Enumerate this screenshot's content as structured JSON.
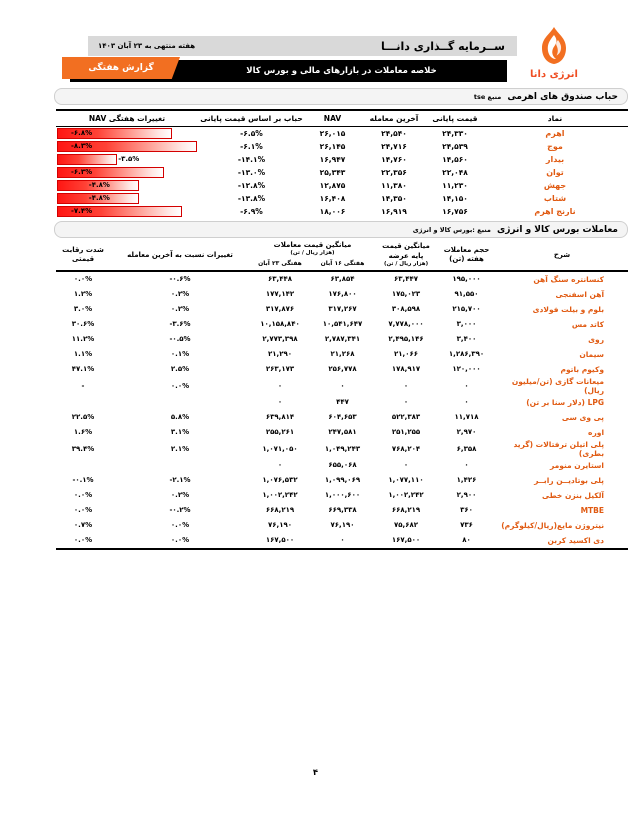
{
  "header": {
    "brand": "ســرمایه گــذاری دانـــا",
    "logo_text": "انرژی دانا",
    "date_label": "هفته منتهی به ۲۳ آبان ۱۴۰۳",
    "banner_title": "خلاصه معاملات در بازارهای مالی و بورس کالا",
    "badge": "گزارش هفتگی"
  },
  "colors": {
    "accent_orange": "#f26f21",
    "item_name_orange": "#e05a12",
    "data_bar_red": "#ff1613",
    "header_gray": "#d9d9d9",
    "banner_black": "#000000"
  },
  "funds_section": {
    "title": "حباب صندوق های اهرمی",
    "source": "منبع tse",
    "columns": [
      "نماد",
      "قیمت پایانی",
      "آخرین معامله",
      "NAV",
      "حباب بر اساس قیمت پایانی",
      "تغییرات هفتگی NAV"
    ],
    "rows": [
      {
        "symbol": "اهرم",
        "close": "۲۴,۳۳۰",
        "last": "۲۴,۵۴۰",
        "nav": "۲۶,۰۱۵",
        "bubble": "-۶.۵%",
        "nav_change": "-۶.۸%",
        "nav_change_value": -6.8
      },
      {
        "symbol": "موج",
        "close": "۲۴,۵۳۹",
        "last": "۲۴,۷۱۶",
        "nav": "۲۶,۱۴۵",
        "bubble": "-۶.۱%",
        "nav_change": "-۸.۳%",
        "nav_change_value": -8.3
      },
      {
        "symbol": "بیدار",
        "close": "۱۴,۵۶۰",
        "last": "۱۴,۷۶۰",
        "nav": "۱۶,۹۴۷",
        "bubble": "-۱۴.۱%",
        "nav_change": "-۳.۵%",
        "nav_change_value": -3.5
      },
      {
        "symbol": "توان",
        "close": "۲۲,۰۴۸",
        "last": "۲۲,۳۵۶",
        "nav": "۲۵,۳۴۳",
        "bubble": "-۱۳.۰%",
        "nav_change": "-۶.۳%",
        "nav_change_value": -6.3
      },
      {
        "symbol": "جهش",
        "close": "۱۱,۲۳۰",
        "last": "۱۱,۳۸۰",
        "nav": "۱۲,۸۷۵",
        "bubble": "-۱۲.۸%",
        "nav_change": "-۴.۸%",
        "nav_change_value": -4.8
      },
      {
        "symbol": "شتاب",
        "close": "۱۴,۱۵۰",
        "last": "۱۴,۳۵۰",
        "nav": "۱۶,۴۰۸",
        "bubble": "-۱۳.۸%",
        "nav_change": "-۴.۸%",
        "nav_change_value": -4.8
      },
      {
        "symbol": "نارنج اهرم",
        "close": "۱۶,۷۵۶",
        "last": "۱۶,۹۱۹",
        "nav": "۱۸,۰۰۶",
        "bubble": "-۶.۹%",
        "nav_change": "-۷.۴%",
        "nav_change_value": -7.4
      }
    ]
  },
  "commodity_section": {
    "title": "معاملات بورس کالا و انرژی",
    "source": "منبع :بورس کالا و انرژی",
    "columns": {
      "item": "شرح",
      "volume_l1": "حجم معاملات",
      "volume_l2": "هفته (تن)",
      "base": "میانگین قیمت پایه عرضه",
      "base_unit": "(هزار ریال / تن)",
      "avg": "میانگین قیمت معاملات",
      "avg_unit": "(هزار ریال / تن)",
      "week16": "هفتگی ۱۶ آبان",
      "week23": "هفتگی ۲۳ آبان",
      "change": "تغییرات نسبت به آخرین معامله",
      "competition": "شدت رقابت قیمتی"
    },
    "rows": [
      {
        "name": "کنسانتره سنگ آهن",
        "volume": "۱۹۵,۰۰۰",
        "base_price": "۶۳,۴۴۷",
        "week16": "۶۳,۸۵۴",
        "week23": "۶۳,۴۴۸",
        "change": "-۰.۶%",
        "competition": "۰.۰%"
      },
      {
        "name": "آهن اسفنجی",
        "volume": "۹۱,۵۵۰",
        "base_price": "۱۷۵,۰۲۳",
        "week16": "۱۷۶,۸۰۰",
        "week23": "۱۷۷,۱۴۲",
        "change": "۰.۲%",
        "competition": "۱.۲%"
      },
      {
        "name": "بلوم و بیلت فولادی",
        "volume": "۲۱۵,۷۰۰",
        "base_price": "۳۰۸,۵۹۸",
        "week16": "۳۱۷,۲۶۷",
        "week23": "۳۱۷,۸۷۶",
        "change": "۰.۲%",
        "competition": "۳.۰%"
      },
      {
        "name": "کاتد مس",
        "volume": "۳,۰۰۰",
        "base_price": "۷,۷۷۸,۰۰۰",
        "week16": "۱۰,۵۴۱,۶۴۷",
        "week23": "۱۰,۱۵۸,۸۴۰",
        "change": "-۳.۶%",
        "competition": "۳۰.۶%"
      },
      {
        "name": "روی",
        "volume": "۳,۴۰۰",
        "base_price": "۲,۴۹۵,۱۴۶",
        "week16": "۲,۷۸۷,۳۴۱",
        "week23": "۲,۷۷۳,۳۹۸",
        "change": "-۰.۵%",
        "competition": "۱۱.۲%"
      },
      {
        "name": "سیمان",
        "volume": "۱,۲۸۶,۳۹۰",
        "base_price": "۲۱,۰۶۶",
        "week16": "۲۱,۲۶۸",
        "week23": "۲۱,۲۹۰",
        "change": "۰.۱%",
        "competition": "۱.۱%"
      },
      {
        "name": "وکیوم باتوم",
        "volume": "۱۲۰,۰۰۰",
        "base_price": "۱۷۸,۹۱۷",
        "week16": "۲۵۶,۷۷۸",
        "week23": "۲۶۳,۱۷۳",
        "change": "۲.۵%",
        "competition": "۴۷.۱%"
      },
      {
        "name": "میعانات گازی  (تن/میلیون ریال)",
        "volume": "۰",
        "base_price": "۰",
        "week16": "۰",
        "week23": "۰",
        "change": "۰.۰%",
        "competition": "-"
      },
      {
        "name": "LPG (دلار سنا بر تن)",
        "volume": "۰",
        "base_price": "۰",
        "week16": "۴۴۷",
        "week23": "۰",
        "change": "",
        "competition": ""
      },
      {
        "name": "پی وی سی",
        "volume": "۱۱,۷۱۸",
        "base_price": "۵۲۲,۳۸۳",
        "week16": "۶۰۴,۶۵۳",
        "week23": "۶۳۹,۸۱۴",
        "change": "۵.۸%",
        "competition": "۲۲.۵%"
      },
      {
        "name": "اوره",
        "volume": "۲,۹۷۰",
        "base_price": "۲۵۱,۲۵۵",
        "week16": "۲۴۷,۵۸۱",
        "week23": "۲۵۵,۲۶۱",
        "change": "۳.۱%",
        "competition": "۱.۶%"
      },
      {
        "name": "پلی اتیلن ترفتالات (گرید بطری)",
        "volume": "۶,۳۵۸",
        "base_price": "۷۶۸,۲۰۴",
        "week16": "۱,۰۴۹,۲۴۳",
        "week23": "۱,۰۷۱,۰۵۰",
        "change": "۲.۱%",
        "competition": "۳۹.۴%"
      },
      {
        "name": "استایرن منومر",
        "volume": "۰",
        "base_price": "۰",
        "week16": "۶۵۵,۰۶۸",
        "week23": "۰",
        "change": "",
        "competition": ""
      },
      {
        "name": "پلی بوتادیــن رابــر",
        "volume": "۱,۴۲۶",
        "base_price": "۱,۰۷۷,۱۱۰",
        "week16": "۱,۰۹۹,۰۶۹",
        "week23": "۱,۰۷۶,۵۳۲",
        "change": "-۲.۱%",
        "competition": "-۰.۱%"
      },
      {
        "name": "آلکیل بنزن خطی",
        "volume": "۲,۹۰۰",
        "base_price": "۱,۰۰۲,۲۴۲",
        "week16": "۱,۰۰۰,۶۰۰",
        "week23": "۱,۰۰۲,۲۴۲",
        "change": "۰.۲%",
        "competition": "۰.۰%"
      },
      {
        "name": "MTBE",
        "volume": "۳۶۰",
        "base_price": "۶۶۸,۲۱۹",
        "week16": "۶۶۹,۳۳۸",
        "week23": "۶۶۸,۲۱۹",
        "change": "-۰.۲%",
        "competition": "۰.۰%"
      },
      {
        "name": "نیتروژن مایع(ریال/کیلوگرم)",
        "volume": "۷۳۶",
        "base_price": "۷۵,۶۸۲",
        "week16": "۷۶,۱۹۰",
        "week23": "۷۶,۱۹۰",
        "change": "۰.۰%",
        "competition": "۰.۷%"
      },
      {
        "name": "دی اکسید کربن",
        "volume": "۸۰",
        "base_price": "۱۶۷,۵۰۰",
        "week16": "۰",
        "week23": "۱۶۷,۵۰۰",
        "change": "۰.۰%",
        "competition": "۰.۰%"
      }
    ]
  },
  "footer": {
    "page_number": "۴"
  }
}
